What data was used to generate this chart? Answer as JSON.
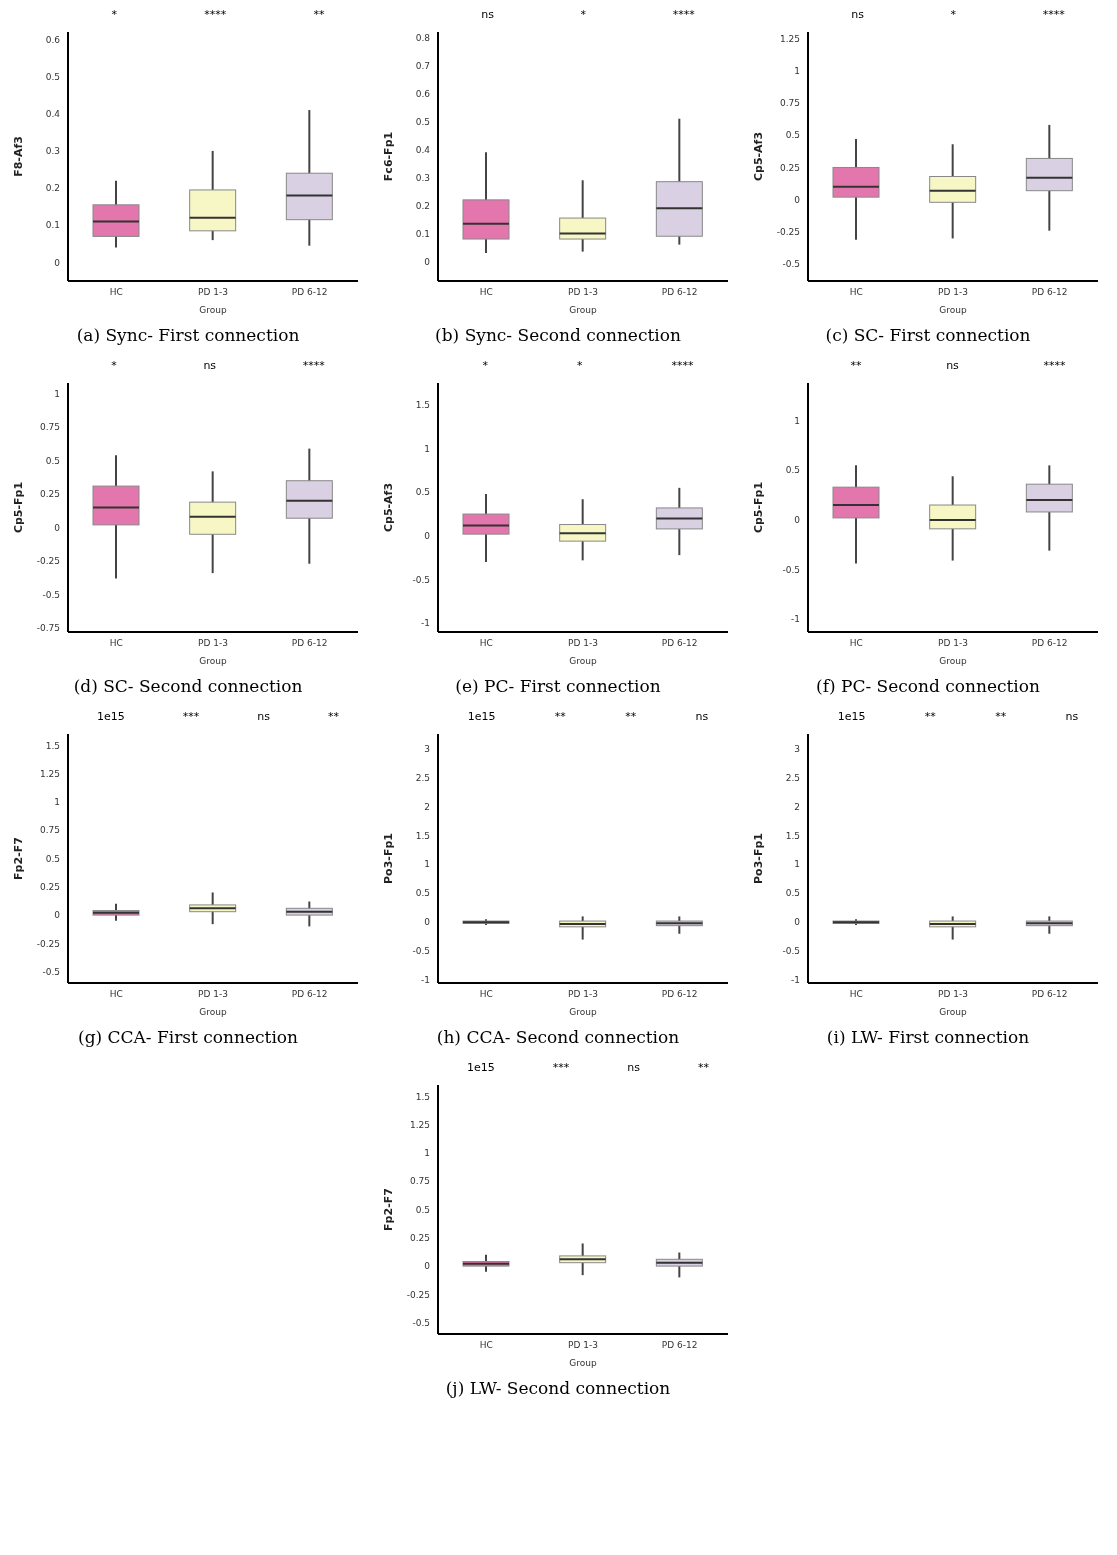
{
  "chart_data": [
    {
      "type": "box",
      "title": "(a) Sync- First connection",
      "xlabel": "Group",
      "ylabel": "F8-Af3",
      "categories": [
        "HC",
        "PD 1-3",
        "PD 6-12"
      ],
      "colors": [
        "#e377ad",
        "#f7f7c6",
        "#d9d0e3"
      ],
      "boxes": [
        {
          "low": 0.04,
          "q1": 0.07,
          "median": 0.11,
          "q3": 0.155,
          "high": 0.22
        },
        {
          "low": 0.06,
          "q1": 0.085,
          "median": 0.12,
          "q3": 0.195,
          "high": 0.3
        },
        {
          "low": 0.045,
          "q1": 0.115,
          "median": 0.18,
          "q3": 0.24,
          "high": 0.41
        }
      ],
      "ylim": [
        -0.05,
        0.62
      ],
      "yticks": [
        0,
        0.1,
        0.2,
        0.3,
        0.4,
        0.5,
        0.6
      ],
      "annotations": [
        "*",
        "****",
        "**"
      ]
    },
    {
      "type": "box",
      "title": "(b) Sync- Second connection",
      "xlabel": "Group",
      "ylabel": "Fc6-Fp1",
      "categories": [
        "HC",
        "PD 1-3",
        "PD 6-12"
      ],
      "colors": [
        "#e377ad",
        "#f7f7c6",
        "#d9d0e3"
      ],
      "boxes": [
        {
          "low": 0.03,
          "q1": 0.08,
          "median": 0.135,
          "q3": 0.22,
          "high": 0.39
        },
        {
          "low": 0.035,
          "q1": 0.08,
          "median": 0.1,
          "q3": 0.155,
          "high": 0.29
        },
        {
          "low": 0.06,
          "q1": 0.09,
          "median": 0.19,
          "q3": 0.285,
          "high": 0.51
        }
      ],
      "ylim": [
        -0.07,
        0.82
      ],
      "yticks": [
        0,
        0.1,
        0.2,
        0.3,
        0.4,
        0.5,
        0.6,
        0.7,
        0.8
      ],
      "annotations": [
        "ns",
        "*",
        "****"
      ]
    },
    {
      "type": "box",
      "title": "(c) SC- First connection",
      "xlabel": "Group",
      "ylabel": "Cp5-Af3",
      "categories": [
        "HC",
        "PD 1-3",
        "PD 6-12"
      ],
      "colors": [
        "#e377ad",
        "#f7f7c6",
        "#d9d0e3"
      ],
      "boxes": [
        {
          "low": -0.31,
          "q1": 0.02,
          "median": 0.1,
          "q3": 0.25,
          "high": 0.47
        },
        {
          "low": -0.3,
          "q1": -0.02,
          "median": 0.07,
          "q3": 0.18,
          "high": 0.43
        },
        {
          "low": -0.24,
          "q1": 0.07,
          "median": 0.17,
          "q3": 0.32,
          "high": 0.58
        }
      ],
      "ylim": [
        -0.63,
        1.3
      ],
      "yticks": [
        -0.5,
        -0.25,
        0,
        0.25,
        0.5,
        0.75,
        1,
        1.25
      ],
      "annotations": [
        "ns",
        "*",
        "****"
      ]
    },
    {
      "type": "box",
      "title": "(d) SC- Second connection",
      "xlabel": "Group",
      "ylabel": "Cp5-Fp1",
      "categories": [
        "HC",
        "PD 1-3",
        "PD 6-12"
      ],
      "colors": [
        "#e377ad",
        "#f7f7c6",
        "#d9d0e3"
      ],
      "boxes": [
        {
          "low": -0.38,
          "q1": 0.02,
          "median": 0.15,
          "q3": 0.31,
          "high": 0.54
        },
        {
          "low": -0.34,
          "q1": -0.05,
          "median": 0.08,
          "q3": 0.19,
          "high": 0.42
        },
        {
          "low": -0.27,
          "q1": 0.07,
          "median": 0.2,
          "q3": 0.35,
          "high": 0.59
        }
      ],
      "ylim": [
        -0.78,
        1.08
      ],
      "yticks": [
        -0.75,
        -0.5,
        -0.25,
        0,
        0.25,
        0.5,
        0.75,
        1
      ],
      "annotations": [
        "*",
        "ns",
        "****"
      ]
    },
    {
      "type": "box",
      "title": "(e) PC- First connection",
      "xlabel": "Group",
      "ylabel": "Cp5-Af3",
      "categories": [
        "HC",
        "PD 1-3",
        "PD 6-12"
      ],
      "colors": [
        "#e377ad",
        "#f7f7c6",
        "#d9d0e3"
      ],
      "boxes": [
        {
          "low": -0.3,
          "q1": 0.02,
          "median": 0.12,
          "q3": 0.25,
          "high": 0.48
        },
        {
          "low": -0.28,
          "q1": -0.06,
          "median": 0.03,
          "q3": 0.13,
          "high": 0.42
        },
        {
          "low": -0.22,
          "q1": 0.08,
          "median": 0.2,
          "q3": 0.32,
          "high": 0.55
        }
      ],
      "ylim": [
        -1.1,
        1.75
      ],
      "yticks": [
        -1,
        -0.5,
        0,
        0.5,
        1,
        1.5
      ],
      "annotations": [
        "*",
        "*",
        "****"
      ]
    },
    {
      "type": "box",
      "title": "(f) PC- Second connection",
      "xlabel": "Group",
      "ylabel": "Cp5-Fp1",
      "categories": [
        "HC",
        "PD 1-3",
        "PD 6-12"
      ],
      "colors": [
        "#e377ad",
        "#f7f7c6",
        "#d9d0e3"
      ],
      "boxes": [
        {
          "low": -0.44,
          "q1": 0.02,
          "median": 0.15,
          "q3": 0.33,
          "high": 0.55
        },
        {
          "low": -0.41,
          "q1": -0.09,
          "median": 0,
          "q3": 0.15,
          "high": 0.44
        },
        {
          "low": -0.31,
          "q1": 0.08,
          "median": 0.2,
          "q3": 0.36,
          "high": 0.55
        }
      ],
      "ylim": [
        -1.13,
        1.38
      ],
      "yticks": [
        -1,
        -0.5,
        0,
        0.5,
        1
      ],
      "annotations": [
        "**",
        "ns",
        "****"
      ]
    },
    {
      "type": "box",
      "title": "(g) CCA- First connection",
      "xlabel": "Group",
      "ylabel": "Fp2-F7",
      "categories": [
        "HC",
        "PD 1-3",
        "PD 6-12"
      ],
      "colors": [
        "#e377ad",
        "#f7f7c6",
        "#d9d0e3"
      ],
      "boxes": [
        {
          "low": -0.05,
          "q1": 0,
          "median": 0.02,
          "q3": 0.04,
          "high": 0.1
        },
        {
          "low": -0.08,
          "q1": 0.03,
          "median": 0.06,
          "q3": 0.09,
          "high": 0.2
        },
        {
          "low": -0.1,
          "q1": 0,
          "median": 0.03,
          "q3": 0.06,
          "high": 0.12
        }
      ],
      "ylim": [
        -0.6,
        1.6
      ],
      "yticks": [
        -0.5,
        -0.25,
        0,
        0.25,
        0.5,
        0.75,
        1,
        1.25,
        1.5
      ],
      "annotations": [
        "1e15",
        "***",
        "ns",
        "**"
      ]
    },
    {
      "type": "box",
      "title": "(h) CCA- Second connection",
      "xlabel": "Group",
      "ylabel": "Po3-Fp1",
      "categories": [
        "HC",
        "PD 1-3",
        "PD 6-12"
      ],
      "colors": [
        "#e377ad",
        "#f7f7c6",
        "#d9d0e3"
      ],
      "boxes": [
        {
          "low": -0.05,
          "q1": -0.02,
          "median": 0,
          "q3": 0.02,
          "high": 0.05
        },
        {
          "low": -0.3,
          "q1": -0.08,
          "median": -0.03,
          "q3": 0.02,
          "high": 0.1
        },
        {
          "low": -0.2,
          "q1": -0.06,
          "median": -0.02,
          "q3": 0.02,
          "high": 0.1
        }
      ],
      "ylim": [
        -1.05,
        3.25
      ],
      "yticks": [
        -1,
        -0.5,
        0,
        0.5,
        1,
        1.5,
        2,
        2.5,
        3
      ],
      "annotations": [
        "1e15",
        "**",
        "**",
        "ns"
      ]
    },
    {
      "type": "box",
      "title": "(i) LW- First connection",
      "xlabel": "Group",
      "ylabel": "Po3-Fp1",
      "categories": [
        "HC",
        "PD 1-3",
        "PD 6-12"
      ],
      "colors": [
        "#e377ad",
        "#f7f7c6",
        "#d9d0e3"
      ],
      "boxes": [
        {
          "low": -0.05,
          "q1": -0.02,
          "median": 0,
          "q3": 0.02,
          "high": 0.05
        },
        {
          "low": -0.3,
          "q1": -0.08,
          "median": -0.03,
          "q3": 0.02,
          "high": 0.1
        },
        {
          "low": -0.2,
          "q1": -0.06,
          "median": -0.02,
          "q3": 0.02,
          "high": 0.1
        }
      ],
      "ylim": [
        -1.05,
        3.25
      ],
      "yticks": [
        -1,
        -0.5,
        0,
        0.5,
        1,
        1.5,
        2,
        2.5,
        3
      ],
      "annotations": [
        "1e15",
        "**",
        "**",
        "ns"
      ]
    },
    {
      "type": "box",
      "title": "(j) LW- Second connection",
      "xlabel": "Group",
      "ylabel": "Fp2-F7",
      "categories": [
        "HC",
        "PD 1-3",
        "PD 6-12"
      ],
      "colors": [
        "#e377ad",
        "#f7f7c6",
        "#d9d0e3"
      ],
      "boxes": [
        {
          "low": -0.05,
          "q1": 0,
          "median": 0.02,
          "q3": 0.04,
          "high": 0.1
        },
        {
          "low": -0.08,
          "q1": 0.03,
          "median": 0.06,
          "q3": 0.09,
          "high": 0.2
        },
        {
          "low": -0.1,
          "q1": 0,
          "median": 0.03,
          "q3": 0.06,
          "high": 0.12
        }
      ],
      "ylim": [
        -0.6,
        1.6
      ],
      "yticks": [
        -0.5,
        -0.25,
        0,
        0.25,
        0.5,
        0.75,
        1,
        1.25,
        1.5
      ],
      "annotations": [
        "1e15",
        "***",
        "ns",
        "**"
      ]
    }
  ]
}
